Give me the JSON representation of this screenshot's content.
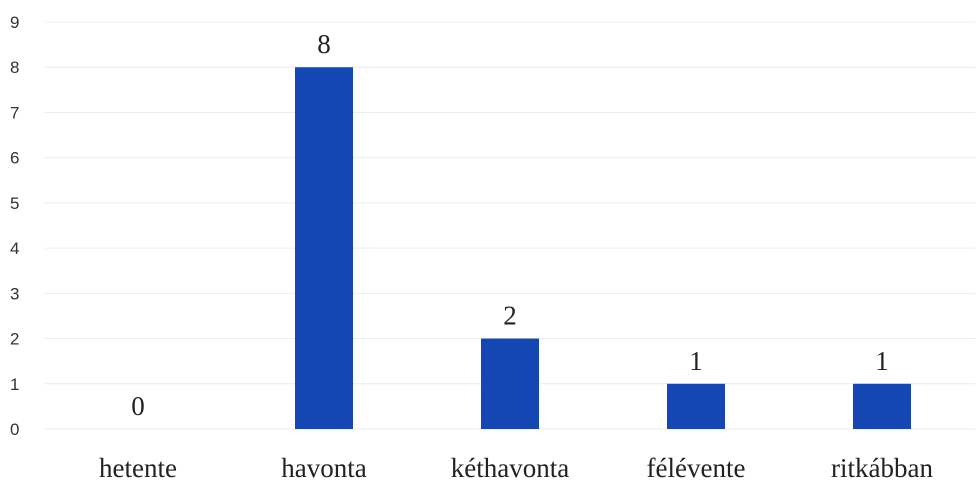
{
  "chart_data": {
    "type": "bar",
    "categories": [
      "hetente",
      "havonta",
      "kéthavonta",
      "félévente",
      "ritkábban"
    ],
    "values": [
      0,
      8,
      2,
      1,
      1
    ],
    "data_labels": [
      "0",
      "8",
      "2",
      "1",
      "1"
    ],
    "title": "",
    "xlabel": "",
    "ylabel": "",
    "ylim": [
      0,
      9
    ],
    "yticks": [
      "0",
      "1",
      "2",
      "3",
      "4",
      "5",
      "6",
      "7",
      "8",
      "9"
    ],
    "grid": true,
    "legend": "none",
    "colors": {
      "bar": "#1447b4",
      "grid": "#ececec",
      "text": "#222222"
    }
  }
}
